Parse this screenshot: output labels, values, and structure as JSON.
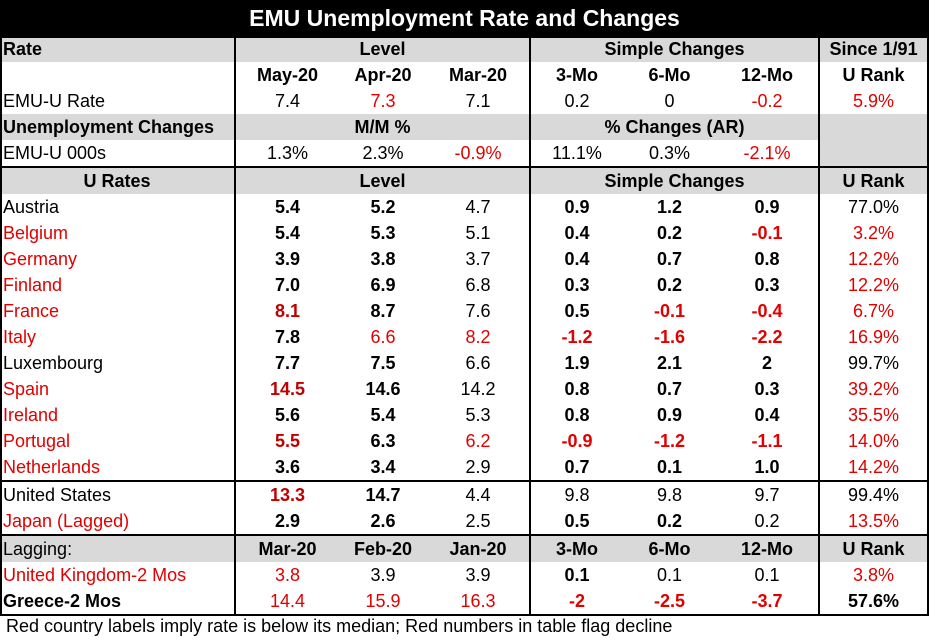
{
  "title": "EMU Unemployment Rate and Changes",
  "header1": {
    "rate": "Rate",
    "level": "Level",
    "simple": "Simple Changes",
    "since": "Since 1/91"
  },
  "header2": {
    "c1": "May-20",
    "c2": "Apr-20",
    "c3": "Mar-20",
    "c4": "3-Mo",
    "c5": "6-Mo",
    "c6": "12-Mo",
    "c7": "U Rank"
  },
  "emu_rate": {
    "label": "EMU-U Rate",
    "v": [
      "7.4",
      "7.3",
      "7.1",
      "0.2",
      "0",
      "-0.2",
      "5.9%"
    ]
  },
  "changes_header": {
    "label": "Unemployment Changes",
    "mm": "M/M %",
    "ar": "% Changes (AR)"
  },
  "emu_000s": {
    "label": "EMU-U 000s",
    "v": [
      "1.3%",
      "2.3%",
      "-0.9%",
      "11.1%",
      "0.3%",
      "-2.1%"
    ]
  },
  "urates_header": {
    "label": "U Rates",
    "level": "Level",
    "simple": "Simple Changes",
    "rank": "U Rank"
  },
  "countries": [
    {
      "name": "Austria",
      "v": [
        "5.4",
        "5.2",
        "4.7",
        "0.9",
        "1.2",
        "0.9",
        "77.0%"
      ]
    },
    {
      "name": "Belgium",
      "v": [
        "5.4",
        "5.3",
        "5.1",
        "0.4",
        "0.2",
        "-0.1",
        "3.2%"
      ]
    },
    {
      "name": "Germany",
      "v": [
        "3.9",
        "3.8",
        "3.7",
        "0.4",
        "0.7",
        "0.8",
        "12.2%"
      ]
    },
    {
      "name": "Finland",
      "v": [
        "7.0",
        "6.9",
        "6.8",
        "0.3",
        "0.2",
        "0.3",
        "12.2%"
      ]
    },
    {
      "name": "France",
      "v": [
        "8.1",
        "8.7",
        "7.6",
        "0.5",
        "-0.1",
        "-0.4",
        "6.7%"
      ]
    },
    {
      "name": "Italy",
      "v": [
        "7.8",
        "6.6",
        "8.2",
        "-1.2",
        "-1.6",
        "-2.2",
        "16.9%"
      ]
    },
    {
      "name": "Luxembourg",
      "v": [
        "7.7",
        "7.5",
        "6.6",
        "1.9",
        "2.1",
        "2",
        "99.7%"
      ]
    },
    {
      "name": "Spain",
      "v": [
        "14.5",
        "14.6",
        "14.2",
        "0.8",
        "0.7",
        "0.3",
        "39.2%"
      ]
    },
    {
      "name": "Ireland",
      "v": [
        "5.6",
        "5.4",
        "5.3",
        "0.8",
        "0.9",
        "0.4",
        "35.5%"
      ]
    },
    {
      "name": "Portugal",
      "v": [
        "5.5",
        "6.3",
        "6.2",
        "-0.9",
        "-1.2",
        "-1.1",
        "14.0%"
      ]
    },
    {
      "name": "Netherlands",
      "v": [
        "3.6",
        "3.4",
        "2.9",
        "0.7",
        "0.1",
        "1.0",
        "14.2%"
      ]
    }
  ],
  "others": [
    {
      "name": "United States",
      "v": [
        "13.3",
        "14.7",
        "4.4",
        "9.8",
        "9.8",
        "9.7",
        "99.4%"
      ]
    },
    {
      "name": "Japan (Lagged)",
      "v": [
        "2.9",
        "2.6",
        "2.5",
        "0.5",
        "0.2",
        "0.2",
        "13.5%"
      ]
    }
  ],
  "lagging_header": {
    "label": "Lagging:",
    "c1": "Mar-20",
    "c2": "Feb-20",
    "c3": "Jan-20",
    "c4": "3-Mo",
    "c5": "6-Mo",
    "c6": "12-Mo",
    "c7": "U Rank"
  },
  "lagging": [
    {
      "name": "United Kingdom-2 Mos",
      "v": [
        "3.8",
        "3.9",
        "3.9",
        "0.1",
        "0.1",
        "0.1",
        "3.8%"
      ]
    },
    {
      "name": "Greece-2 Mos",
      "v": [
        "14.4",
        "15.9",
        "16.3",
        "-2",
        "-2.5",
        "-3.7",
        "57.6%"
      ]
    }
  ],
  "footnote": "Red country labels imply rate is below its median; Red numbers in table flag decline",
  "colors": {
    "red": "#e00000",
    "dark_red": "#c00000",
    "header_gray": "#d9d9d9",
    "title_bg": "#000000"
  }
}
